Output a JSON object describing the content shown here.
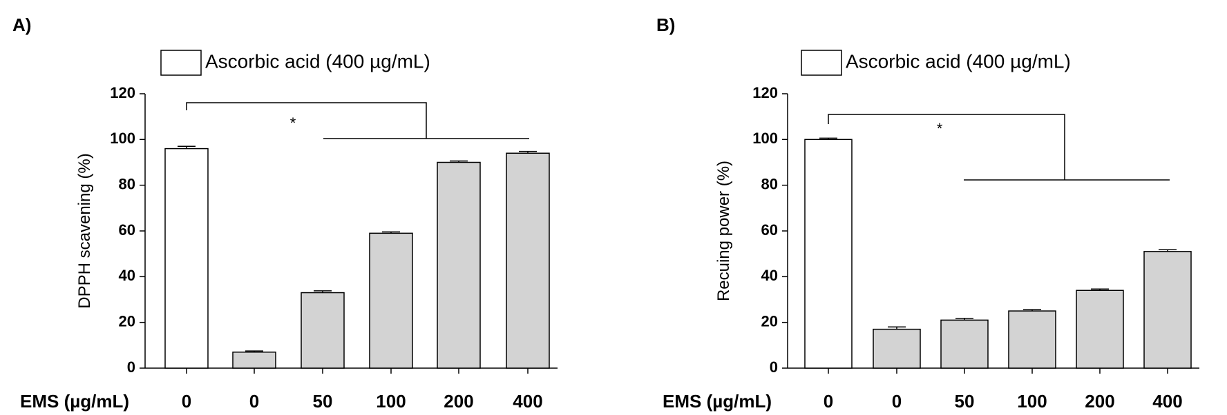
{
  "chart_data": [
    {
      "type": "bar",
      "panel_label": "A)",
      "ylabel": "DPPH scavening (%)",
      "xlabel": "EMS (µg/mL)",
      "categories": [
        "0",
        "0",
        "50",
        "100",
        "200",
        "400"
      ],
      "values": [
        96,
        7,
        33,
        59,
        90,
        94
      ],
      "errors": [
        1,
        0.5,
        0.8,
        0.6,
        0.6,
        0.8
      ],
      "bar_colors": [
        "#ffffff",
        "#d3d3d3",
        "#d3d3d3",
        "#d3d3d3",
        "#d3d3d3",
        "#d3d3d3"
      ],
      "ylim": [
        0,
        120
      ],
      "yticks": [
        "0",
        "20",
        "40",
        "60",
        "80",
        "100",
        "120"
      ],
      "legend": {
        "label": "Ascorbic acid (400 µg/mL)",
        "placement": "top-left"
      },
      "significance": "*"
    },
    {
      "type": "bar",
      "panel_label": "B)",
      "ylabel": "Recuing power (%)",
      "xlabel": "EMS (µg/mL)",
      "categories": [
        "0",
        "0",
        "50",
        "100",
        "200",
        "400"
      ],
      "values": [
        100,
        17,
        21,
        25,
        34,
        51
      ],
      "errors": [
        0.6,
        1,
        0.8,
        0.6,
        0.6,
        0.8
      ],
      "bar_colors": [
        "#ffffff",
        "#d3d3d3",
        "#d3d3d3",
        "#d3d3d3",
        "#d3d3d3",
        "#d3d3d3"
      ],
      "ylim": [
        0,
        120
      ],
      "yticks": [
        "0",
        "20",
        "40",
        "60",
        "80",
        "100",
        "120"
      ],
      "legend": {
        "label": "Ascorbic acid (400 µg/mL)",
        "placement": "top-left"
      },
      "significance": "*"
    }
  ]
}
